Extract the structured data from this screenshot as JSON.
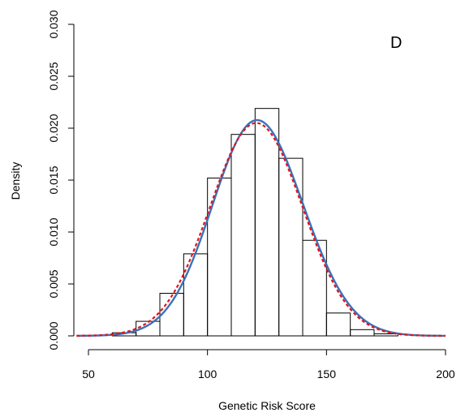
{
  "chart_data": {
    "type": "bar",
    "title": "",
    "xlabel": "Genetic Risk Score",
    "ylabel": "Density",
    "panel_label": "D",
    "xlim": [
      45,
      200
    ],
    "ylim": [
      0,
      0.03
    ],
    "x_ticks": [
      50,
      100,
      150,
      200
    ],
    "y_ticks": [
      0.0,
      0.005,
      0.01,
      0.015,
      0.02,
      0.025,
      0.03
    ],
    "y_tick_labels": [
      "0.000",
      "0.005",
      "0.010",
      "0.015",
      "0.020",
      "0.025",
      "0.030"
    ],
    "grid": false,
    "bins": [
      {
        "x0": 60,
        "x1": 70,
        "density": 0.0003
      },
      {
        "x0": 70,
        "x1": 80,
        "density": 0.0014
      },
      {
        "x0": 80,
        "x1": 90,
        "density": 0.0041
      },
      {
        "x0": 90,
        "x1": 100,
        "density": 0.0079
      },
      {
        "x0": 100,
        "x1": 110,
        "density": 0.0152
      },
      {
        "x0": 110,
        "x1": 120,
        "density": 0.0194
      },
      {
        "x0": 120,
        "x1": 130,
        "density": 0.0219
      },
      {
        "x0": 130,
        "x1": 140,
        "density": 0.0171
      },
      {
        "x0": 140,
        "x1": 150,
        "density": 0.0092
      },
      {
        "x0": 150,
        "x1": 160,
        "density": 0.0022
      },
      {
        "x0": 160,
        "x1": 170,
        "density": 0.0006
      },
      {
        "x0": 170,
        "x1": 180,
        "density": 0.0002
      }
    ],
    "curves": [
      {
        "style": "solid",
        "color": "#3a72b8",
        "mean": 122.5,
        "sd": 19.2,
        "peak": 0.0207,
        "skew": -1.1
      },
      {
        "style": "dashed",
        "color": "#e0141e",
        "mean": 120.5,
        "sd": 19.4,
        "peak": 0.0205,
        "skew": 0
      }
    ],
    "curve_range": [
      45,
      200
    ]
  }
}
